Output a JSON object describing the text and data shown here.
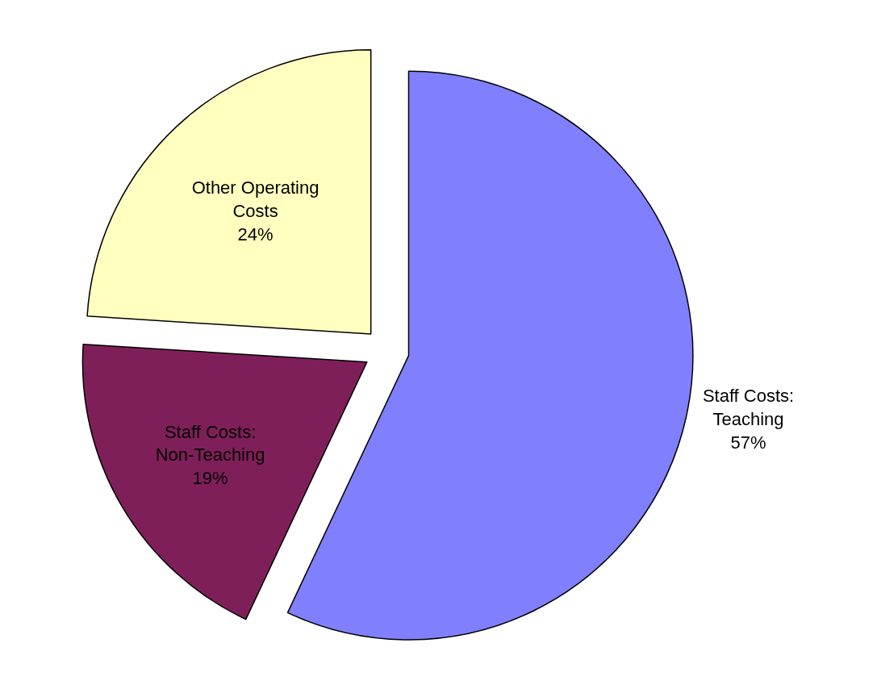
{
  "chart_data": {
    "type": "pie",
    "categories": [
      "Staff Costs: Teaching",
      "Staff Costs: Non-Teaching",
      "Other Operating Costs"
    ],
    "values": [
      57,
      19,
      24
    ],
    "value_labels": [
      "57%",
      "19%",
      "24%"
    ],
    "colors": [
      "#8080ff",
      "#7f1f5a",
      "#ffffc0"
    ],
    "legend": false
  }
}
